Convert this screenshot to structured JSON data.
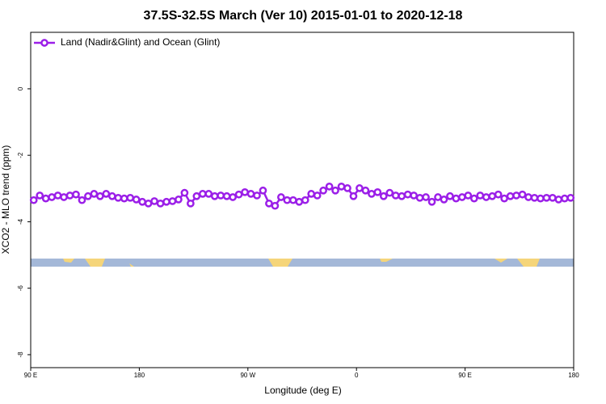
{
  "chart_data": {
    "type": "line",
    "title": "37.5S-32.5S March (Ver 10)   2015-01-01 to 2020-12-18",
    "x_label": "Longitude (deg E)",
    "y_label": "XCO2 - MLO trend (ppm)",
    "xlim": [
      90,
      540
    ],
    "ylim": [
      -8.39,
      1.7
    ],
    "xticks": [
      {
        "value": 90,
        "label": "90 E"
      },
      180,
      {
        "value": 270,
        "label": "90 W"
      },
      {
        "value": 360,
        "label": "0"
      },
      {
        "value": 450,
        "label": "90 E"
      },
      {
        "value": 540,
        "label": "180"
      }
    ],
    "yticks": [
      0,
      -2,
      -4,
      -6,
      -8
    ],
    "legend": "top-left",
    "x": [
      92.5,
      97.5,
      102.5,
      107.5,
      112.5,
      117.5,
      122.5,
      127.5,
      132.5,
      137.5,
      142.5,
      147.5,
      152.5,
      157.5,
      162.5,
      167.5,
      172.5,
      177.5,
      182.5,
      187.5,
      192.5,
      197.5,
      202.5,
      207.5,
      212.5,
      217.5,
      222.5,
      227.5,
      232.5,
      237.5,
      242.5,
      247.5,
      252.5,
      257.5,
      262.5,
      267.5,
      272.5,
      277.5,
      282.5,
      287.5,
      292.5,
      297.5,
      302.5,
      307.5,
      312.5,
      317.5,
      322.5,
      327.5,
      332.5,
      337.5,
      342.5,
      347.5,
      352.5,
      357.5,
      362.5,
      367.5,
      372.5,
      377.5,
      382.5,
      387.5,
      392.5,
      397.5,
      402.5,
      407.5,
      412.5,
      417.5,
      422.5,
      427.5,
      432.5,
      437.5,
      442.5,
      447.5,
      452.5,
      457.5,
      462.5,
      467.5,
      472.5,
      477.5,
      482.5,
      487.5,
      492.5,
      497.5,
      502.5,
      507.5,
      512.5,
      517.5,
      522.5,
      527.5,
      532.5,
      537.5
    ],
    "series": [
      {
        "name": "Land (Nadir&Glint) and Ocean (Glint)",
        "color": "#9b1fe8",
        "values": [
          -3.35,
          -3.21,
          -3.3,
          -3.26,
          -3.21,
          -3.26,
          -3.21,
          -3.18,
          -3.35,
          -3.23,
          -3.16,
          -3.23,
          -3.16,
          -3.23,
          -3.28,
          -3.3,
          -3.28,
          -3.33,
          -3.4,
          -3.45,
          -3.38,
          -3.45,
          -3.4,
          -3.38,
          -3.33,
          -3.13,
          -3.45,
          -3.23,
          -3.16,
          -3.16,
          -3.23,
          -3.21,
          -3.23,
          -3.26,
          -3.18,
          -3.11,
          -3.16,
          -3.21,
          -3.06,
          -3.45,
          -3.52,
          -3.26,
          -3.35,
          -3.35,
          -3.4,
          -3.35,
          -3.16,
          -3.21,
          -3.06,
          -2.94,
          -3.06,
          -2.94,
          -2.99,
          -3.23,
          -2.99,
          -3.06,
          -3.16,
          -3.11,
          -3.23,
          -3.13,
          -3.21,
          -3.23,
          -3.18,
          -3.21,
          -3.28,
          -3.26,
          -3.4,
          -3.26,
          -3.33,
          -3.23,
          -3.3,
          -3.26,
          -3.21,
          -3.3,
          -3.21,
          -3.26,
          -3.23,
          -3.18,
          -3.3,
          -3.23,
          -3.21,
          -3.18,
          -3.26,
          -3.28,
          -3.3,
          -3.28,
          -3.28,
          -3.33,
          -3.3,
          -3.28
        ]
      }
    ]
  }
}
